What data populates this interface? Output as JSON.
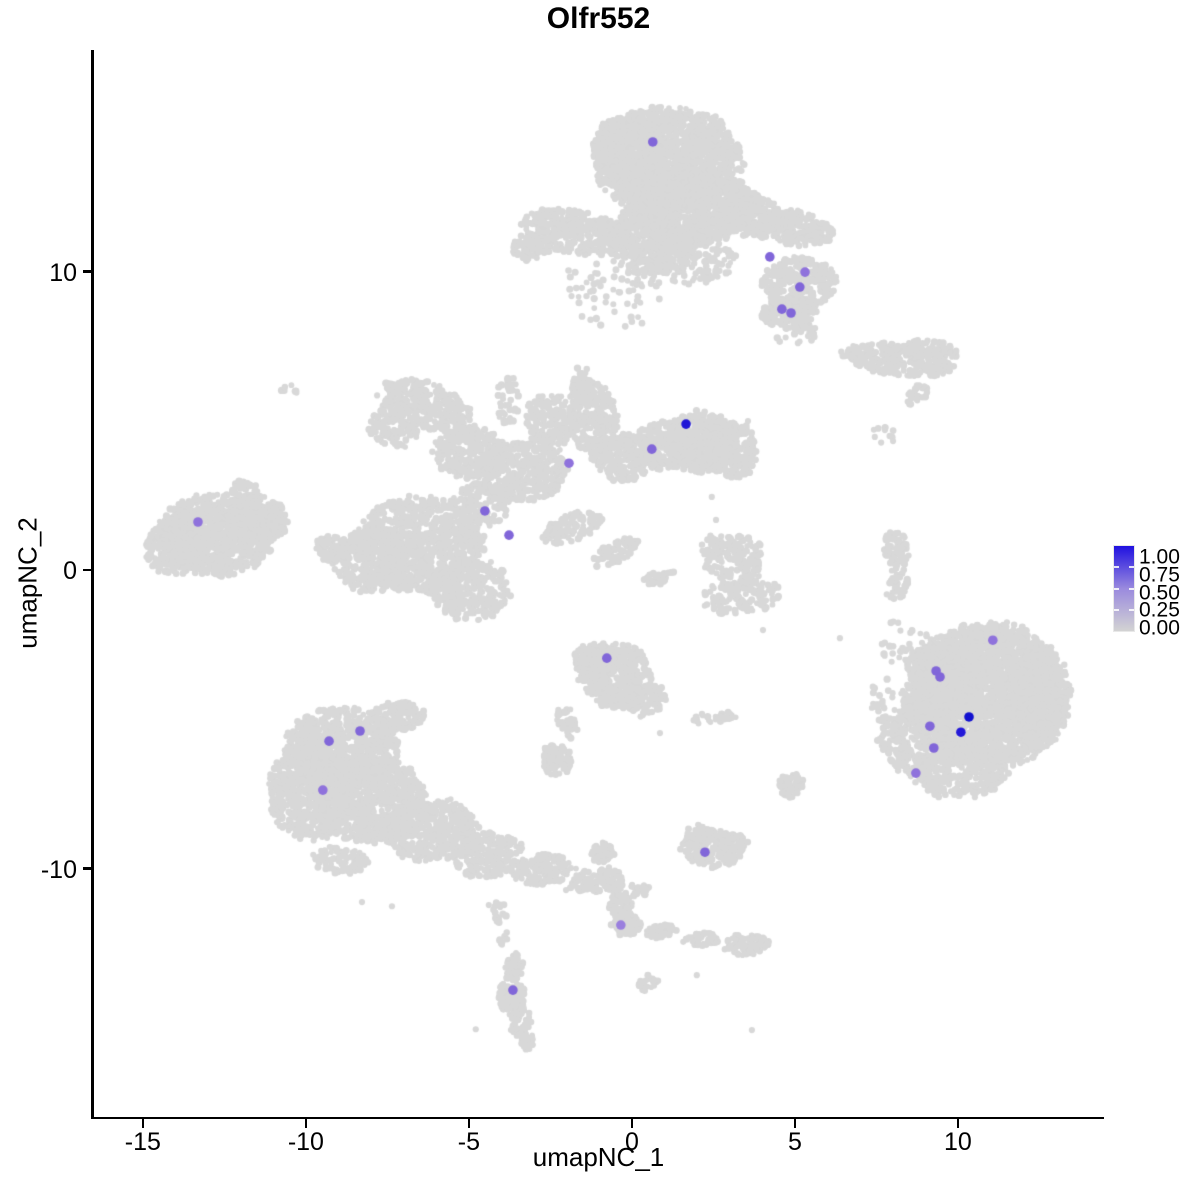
{
  "title": "Olfr552",
  "axes": {
    "x": {
      "label": "umapNC_1",
      "ticks": [
        -15,
        -10,
        -5,
        0,
        5,
        10
      ],
      "range": [
        -16.53,
        14.48
      ]
    },
    "y": {
      "label": "umapNC_2",
      "ticks": [
        10,
        0,
        -10
      ],
      "range": [
        -18.32,
        17.42
      ]
    }
  },
  "legend": {
    "tick_labels": [
      "1.00",
      "0.75",
      "0.50",
      "0.25",
      "0.00"
    ],
    "tick_values": [
      1.0,
      0.75,
      0.5,
      0.25,
      0.0
    ],
    "high_color": "#2011e0",
    "mid_color": "#9a8ade",
    "low_color": "#d3d3d3"
  },
  "colors": {
    "background_points": "#d8d8d8",
    "axis": "#000000"
  },
  "chart_data": {
    "type": "scatter",
    "title": "Olfr552",
    "xlabel": "umapNC_1",
    "ylabel": "umapNC_2",
    "xlim": [
      -16.5,
      14.5
    ],
    "ylim": [
      -18.3,
      17.4
    ],
    "grid": false,
    "legend_position": "right",
    "expression_scale": {
      "min": 0.0,
      "max": 1.0
    },
    "expressing_cells": [
      {
        "x": 0.64,
        "y": 14.34,
        "value": 0.5,
        "color": "#8166d9"
      },
      {
        "x": 4.23,
        "y": 10.49,
        "value": 0.5,
        "color": "#8166d9"
      },
      {
        "x": 5.31,
        "y": 9.98,
        "value": 0.45,
        "color": "#8f72dc"
      },
      {
        "x": 5.15,
        "y": 9.48,
        "value": 0.5,
        "color": "#8166d9"
      },
      {
        "x": 4.6,
        "y": 8.74,
        "value": 0.5,
        "color": "#8166d9"
      },
      {
        "x": 4.88,
        "y": 8.61,
        "value": 0.5,
        "color": "#8166d9"
      },
      {
        "x": 1.66,
        "y": 4.89,
        "value": 0.95,
        "color": "#1f16d6"
      },
      {
        "x": 0.61,
        "y": 4.05,
        "value": 0.5,
        "color": "#8166d9"
      },
      {
        "x": -1.93,
        "y": 3.58,
        "value": 0.45,
        "color": "#8f72dc"
      },
      {
        "x": -4.51,
        "y": 1.98,
        "value": 0.5,
        "color": "#8166d9"
      },
      {
        "x": -3.77,
        "y": 1.17,
        "value": 0.5,
        "color": "#8166d9"
      },
      {
        "x": -13.31,
        "y": 1.61,
        "value": 0.45,
        "color": "#8f72dc"
      },
      {
        "x": -0.77,
        "y": -2.95,
        "value": 0.5,
        "color": "#8166d9"
      },
      {
        "x": -8.34,
        "y": -5.39,
        "value": 0.5,
        "color": "#8166d9"
      },
      {
        "x": -9.29,
        "y": -5.73,
        "value": 0.5,
        "color": "#8166d9"
      },
      {
        "x": -9.48,
        "y": -7.37,
        "value": 0.45,
        "color": "#8f72dc"
      },
      {
        "x": 11.07,
        "y": -2.35,
        "value": 0.45,
        "color": "#8f72dc"
      },
      {
        "x": 9.33,
        "y": -3.38,
        "value": 0.5,
        "color": "#8166d9"
      },
      {
        "x": 9.45,
        "y": -3.58,
        "value": 0.5,
        "color": "#8166d9"
      },
      {
        "x": 10.34,
        "y": -4.92,
        "value": 1.0,
        "color": "#1210cf"
      },
      {
        "x": 9.14,
        "y": -5.23,
        "value": 0.5,
        "color": "#8166d9"
      },
      {
        "x": 10.09,
        "y": -5.43,
        "value": 0.9,
        "color": "#2318d8"
      },
      {
        "x": 9.26,
        "y": -5.96,
        "value": 0.5,
        "color": "#8166d9"
      },
      {
        "x": 8.71,
        "y": -6.8,
        "value": 0.45,
        "color": "#8f72dc"
      },
      {
        "x": 2.24,
        "y": -9.45,
        "value": 0.5,
        "color": "#8166d9"
      },
      {
        "x": -0.34,
        "y": -11.89,
        "value": 0.45,
        "color": "#9a7fde"
      },
      {
        "x": -3.65,
        "y": -14.07,
        "value": 0.5,
        "color": "#8166d9"
      }
    ],
    "background_clusters": [
      {
        "name": "top-large",
        "components": [
          [
            1.1,
            13.74,
            2.21,
            1.74,
            1500,
            0
          ],
          [
            1.78,
            12.23,
            1.9,
            1.27,
            900,
            0
          ],
          [
            0.61,
            11.06,
            1.35,
            1.14,
            550,
            0
          ],
          [
            -0.12,
            14.07,
            1.04,
            1.21,
            400,
            0
          ],
          [
            3.62,
            11.89,
            1.04,
            0.74,
            260,
            -15
          ],
          [
            5.0,
            11.46,
            0.8,
            0.6,
            170,
            -15
          ],
          [
            5.77,
            11.29,
            0.4,
            0.4,
            60,
            0
          ],
          [
            -1.75,
            11.32,
            1.6,
            0.74,
            380,
            -10
          ],
          [
            -3.07,
            10.82,
            0.61,
            0.47,
            80,
            0
          ],
          [
            5.15,
            9.61,
            1.1,
            0.84,
            300,
            0
          ],
          [
            4.79,
            8.61,
            0.86,
            0.54,
            160,
            0
          ],
          [
            -0.61,
            9.31,
            1.6,
            1.21,
            70,
            0
          ],
          [
            5.0,
            7.94,
            0.77,
            0.34,
            25,
            0
          ],
          [
            1.93,
            10.39,
            1.23,
            0.84,
            140,
            0
          ]
        ]
      },
      {
        "name": "right-upper-band",
        "components": [
          [
            8.16,
            7.04,
            1.69,
            0.5,
            300,
            -8
          ],
          [
            9.14,
            7.37,
            0.86,
            0.34,
            90,
            -8
          ],
          [
            8.74,
            5.86,
            0.4,
            0.27,
            30,
            45
          ],
          [
            7.73,
            4.59,
            0.4,
            0.37,
            8,
            0
          ]
        ]
      },
      {
        "name": "central-x",
        "components": [
          [
            -6.35,
            5.53,
            1.47,
            0.77,
            330,
            -20
          ],
          [
            -7.33,
            4.76,
            0.8,
            0.6,
            120,
            -20
          ],
          [
            -4.97,
            3.95,
            1.1,
            0.87,
            280,
            0
          ],
          [
            -3.44,
            3.28,
            1.41,
            1.01,
            420,
            0
          ],
          [
            -2.55,
            4.86,
            0.74,
            1.07,
            200,
            0
          ],
          [
            -1.17,
            5.03,
            0.74,
            1.34,
            260,
            10
          ],
          [
            -1.53,
            6.2,
            0.31,
            0.6,
            50,
            0
          ],
          [
            -0.21,
            3.75,
            0.92,
            0.77,
            220,
            0
          ],
          [
            1.01,
            4.19,
            0.98,
            0.8,
            260,
            0
          ],
          [
            2.09,
            4.29,
            1.1,
            1.01,
            380,
            0
          ],
          [
            3.1,
            4.02,
            0.74,
            0.94,
            220,
            0
          ],
          [
            -3.8,
            5.7,
            0.37,
            0.87,
            40,
            0
          ],
          [
            -6.5,
            0.84,
            1.9,
            1.61,
            900,
            0
          ],
          [
            -8.04,
            0.34,
            1.1,
            1.07,
            300,
            0
          ],
          [
            -9.17,
            0.74,
            0.55,
            0.47,
            70,
            0
          ],
          [
            -4.97,
            -0.67,
            1.23,
            1.01,
            300,
            0
          ],
          [
            -1.84,
            1.44,
            0.98,
            0.44,
            110,
            25
          ],
          [
            -0.46,
            0.6,
            0.8,
            0.34,
            70,
            25
          ],
          [
            0.8,
            -0.27,
            0.49,
            0.23,
            30,
            25
          ],
          [
            -4.66,
            2.18,
            0.92,
            0.74,
            120,
            0
          ]
        ]
      },
      {
        "name": "far-left",
        "components": [
          [
            -12.79,
            1.17,
            1.78,
            1.34,
            850,
            0
          ],
          [
            -14.02,
            0.74,
            0.92,
            0.87,
            220,
            0
          ],
          [
            -11.53,
            1.68,
            0.92,
            0.8,
            220,
            0
          ],
          [
            -11.81,
            2.55,
            0.55,
            0.37,
            70,
            -35
          ],
          [
            -11.04,
            1.44,
            0.55,
            0.34,
            60,
            0
          ]
        ]
      },
      {
        "name": "center-small",
        "components": [
          [
            -0.49,
            -3.55,
            1.1,
            1.11,
            420,
            0
          ],
          [
            -1.17,
            -3.02,
            0.61,
            0.6,
            130,
            0
          ],
          [
            0.49,
            -4.36,
            0.61,
            0.44,
            90,
            40
          ],
          [
            -1.96,
            -5.09,
            0.31,
            0.54,
            40,
            20
          ],
          [
            -2.33,
            -6.37,
            0.46,
            0.54,
            80,
            0
          ],
          [
            2.18,
            -4.99,
            0.28,
            0.2,
            10,
            0
          ],
          [
            2.76,
            -4.89,
            0.4,
            0.23,
            18,
            0
          ]
        ]
      },
      {
        "name": "mid-right-small",
        "components": [
          [
            3.16,
            0.34,
            0.92,
            0.87,
            160,
            0
          ],
          [
            3.37,
            -0.9,
            1.23,
            0.57,
            140,
            5
          ],
          [
            2.45,
            0.84,
            0.37,
            0.34,
            25,
            0
          ]
        ]
      },
      {
        "name": "right-ribbon",
        "components": [
          [
            8.1,
            0.74,
            0.37,
            0.67,
            70,
            10
          ],
          [
            8.19,
            -0.34,
            0.28,
            0.54,
            40,
            0
          ],
          [
            7.94,
            -0.87,
            0.15,
            0.15,
            4,
            0
          ],
          [
            8.04,
            -1.78,
            0.15,
            0.15,
            3,
            0
          ]
        ]
      },
      {
        "name": "small-below-center",
        "components": [
          [
            2.45,
            -9.31,
            0.92,
            0.64,
            200,
            0
          ],
          [
            2.09,
            -8.81,
            0.46,
            0.27,
            40,
            0
          ],
          [
            3.19,
            -9.15,
            0.37,
            0.3,
            30,
            0
          ]
        ]
      },
      {
        "name": "bottom-tail",
        "components": [
          [
            -0.89,
            -9.48,
            0.37,
            0.34,
            50,
            0
          ],
          [
            -0.61,
            -10.39,
            0.31,
            0.5,
            50,
            15
          ],
          [
            -0.34,
            -11.26,
            0.37,
            0.4,
            55,
            0
          ],
          [
            -0.18,
            -11.86,
            0.49,
            0.4,
            80,
            0
          ],
          [
            0.92,
            -12.09,
            0.49,
            0.23,
            40,
            5
          ],
          [
            2.15,
            -12.39,
            0.55,
            0.23,
            45,
            5
          ],
          [
            3.56,
            -12.56,
            0.71,
            0.37,
            90,
            0
          ],
          [
            0.55,
            -13.8,
            0.4,
            0.23,
            25,
            30
          ]
        ]
      },
      {
        "name": "bottom-narrow",
        "components": [
          [
            -3.62,
            -13.27,
            0.28,
            0.44,
            40,
            0
          ],
          [
            -3.71,
            -14.27,
            0.4,
            0.64,
            90,
            0
          ],
          [
            -3.4,
            -15.14,
            0.34,
            0.47,
            50,
            -15
          ],
          [
            -3.19,
            -15.81,
            0.21,
            0.27,
            18,
            0
          ],
          [
            -4.05,
            -11.46,
            0.21,
            0.4,
            18,
            0
          ],
          [
            -3.93,
            -12.33,
            0.15,
            0.27,
            8,
            0
          ]
        ]
      },
      {
        "name": "bottom-left-large",
        "components": [
          [
            -8.9,
            -5.96,
            1.72,
            1.34,
            850,
            0
          ],
          [
            -9.82,
            -7.44,
            1.29,
            1.54,
            650,
            0
          ],
          [
            -7.98,
            -7.71,
            1.69,
            1.41,
            800,
            0
          ],
          [
            -6.13,
            -8.71,
            1.38,
            1.01,
            420,
            10
          ],
          [
            -4.45,
            -9.55,
            1.07,
            0.74,
            220,
            12
          ],
          [
            -2.73,
            -10.02,
            1.01,
            0.5,
            140,
            8
          ],
          [
            -1.13,
            -10.42,
            0.83,
            0.37,
            80,
            8
          ],
          [
            0.15,
            -10.72,
            0.4,
            0.23,
            25,
            8
          ],
          [
            -7.18,
            -4.89,
            0.8,
            0.5,
            130,
            0
          ],
          [
            -8.96,
            -9.72,
            0.92,
            0.47,
            80,
            0
          ]
        ]
      },
      {
        "name": "right-large",
        "components": [
          [
            10.92,
            -4.19,
            2.45,
            2.35,
            2600,
            0
          ],
          [
            12.45,
            -4.36,
            0.86,
            1.61,
            350,
            0
          ],
          [
            9.69,
            -3.28,
            1.29,
            0.94,
            330,
            0
          ],
          [
            8.77,
            -5.76,
            1.17,
            1.11,
            330,
            0
          ],
          [
            10.0,
            -6.77,
            1.47,
            0.87,
            330,
            0
          ],
          [
            8.47,
            -2.61,
            0.8,
            0.67,
            30,
            0
          ],
          [
            7.73,
            -4.36,
            0.43,
            0.8,
            25,
            0
          ],
          [
            9.14,
            -4.36,
            0.92,
            1.01,
            160,
            0
          ]
        ]
      },
      {
        "name": "tiny-upper-left",
        "components": [
          [
            -10.58,
            6.03,
            0.31,
            0.2,
            7,
            -20
          ]
        ]
      },
      {
        "name": "bottom-right-small",
        "components": [
          [
            4.94,
            -7.24,
            0.43,
            0.4,
            60,
            0
          ]
        ]
      }
    ],
    "sparse_points": [
      [
        5.09,
        7.6
      ],
      [
        4.02,
        -2.01
      ],
      [
        6.38,
        -2.28
      ],
      [
        -1.87,
        -9.98
      ],
      [
        -2.02,
        -10.72
      ],
      [
        -4.39,
        -11.22
      ],
      [
        -4.79,
        -15.38
      ],
      [
        3.68,
        -15.41
      ],
      [
        1.99,
        -13.57
      ],
      [
        7.76,
        4.69
      ],
      [
        7.45,
        4.46
      ],
      [
        8.01,
        4.32
      ],
      [
        3.56,
        4.99
      ],
      [
        2.45,
        2.45
      ],
      [
        2.58,
        1.68
      ],
      [
        -8.28,
        -11.12
      ],
      [
        -7.36,
        -11.26
      ],
      [
        0.86,
        -5.46
      ]
    ]
  }
}
